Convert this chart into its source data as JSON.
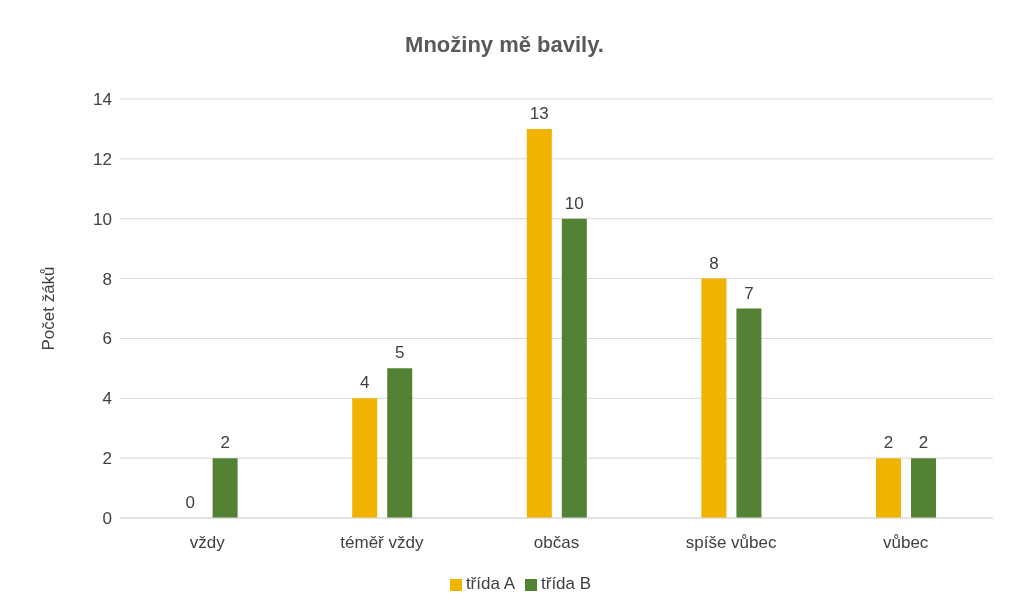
{
  "chart_data": {
    "type": "bar",
    "title": "Množiny mě bavily.",
    "ylabel": "Počet žáků",
    "categories": [
      "vždy",
      "téměř vždy",
      "občas",
      "spíše vůbec",
      "vůbec"
    ],
    "series": [
      {
        "name": "třída A",
        "color": "#f0b400",
        "values": [
          0,
          4,
          13,
          8,
          2
        ]
      },
      {
        "name": "třída B",
        "color": "#548235",
        "values": [
          2,
          5,
          10,
          7,
          2
        ]
      }
    ],
    "ylim": [
      0,
      14
    ],
    "yticks": [
      0,
      2,
      4,
      6,
      8,
      10,
      12,
      14
    ],
    "grid": "y",
    "legend": "bottom",
    "data_labels": true
  }
}
